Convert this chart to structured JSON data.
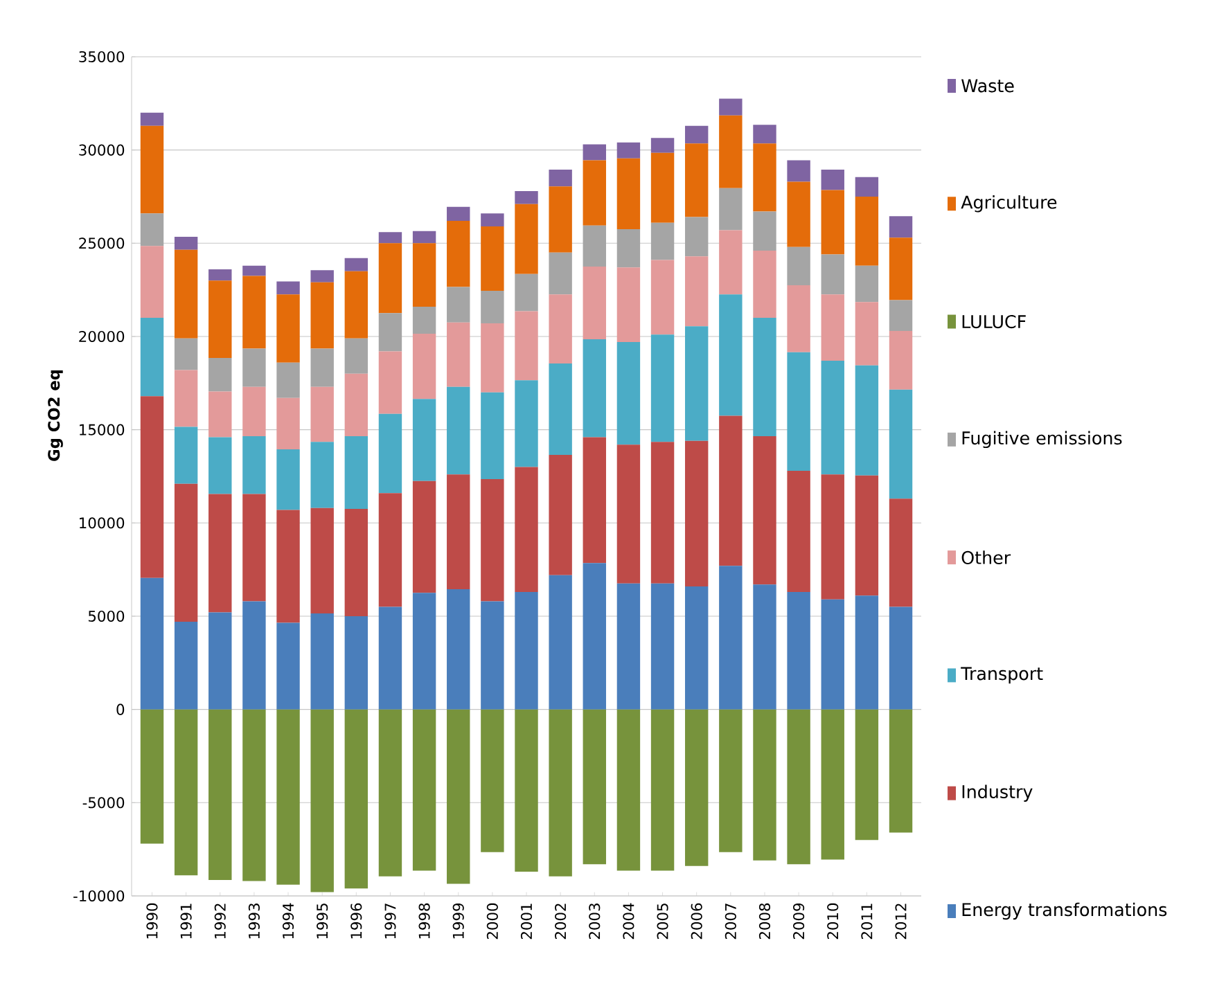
{
  "chart_data": {
    "type": "bar",
    "stacked": true,
    "ylabel": "Gg CO2 eq",
    "categories": [
      "1990",
      "1991",
      "1992",
      "1993",
      "1994",
      "1995",
      "1996",
      "1997",
      "1998",
      "1999",
      "2000",
      "2001",
      "2002",
      "2003",
      "2004",
      "2005",
      "2006",
      "2007",
      "2008",
      "2009",
      "2010",
      "2011",
      "2012"
    ],
    "series": [
      {
        "name": "Energy transformations",
        "color": "#4a7ebb",
        "values": [
          7050,
          4700,
          5200,
          5800,
          4650,
          5150,
          5000,
          5500,
          6250,
          6450,
          5800,
          6300,
          7200,
          7850,
          6750,
          6750,
          6600,
          7700,
          6700,
          6300,
          5900,
          6100,
          5500
        ]
      },
      {
        "name": "Industry",
        "color": "#be4b48",
        "values": [
          9750,
          7400,
          6350,
          5750,
          6050,
          5650,
          5750,
          6100,
          6000,
          6150,
          6550,
          6700,
          6450,
          6750,
          7450,
          7600,
          7800,
          8050,
          7950,
          6500,
          6700,
          6450,
          5800
        ]
      },
      {
        "name": "Transport",
        "color": "#4bacc6",
        "values": [
          4200,
          3050,
          3050,
          3100,
          3250,
          3550,
          3900,
          4250,
          4400,
          4700,
          4650,
          4650,
          4900,
          5250,
          5500,
          5750,
          6150,
          6500,
          6350,
          6350,
          6100,
          5900,
          5850
        ]
      },
      {
        "name": "Other",
        "color": "#e39a9a",
        "values": [
          3850,
          3050,
          2450,
          2650,
          2750,
          2950,
          3350,
          3350,
          3500,
          3450,
          3700,
          3700,
          3700,
          3900,
          4000,
          4000,
          3750,
          3450,
          3600,
          3600,
          3550,
          3400,
          3150
        ]
      },
      {
        "name": "Fugitive emissions",
        "color": "#a5a5a5",
        "values": [
          1750,
          1700,
          1800,
          2050,
          1900,
          2050,
          1900,
          2050,
          1450,
          1900,
          1750,
          2000,
          2250,
          2200,
          2050,
          2000,
          2100,
          2250,
          2100,
          2050,
          2150,
          1950,
          1650
        ]
      },
      {
        "name": "LULUCF",
        "color": "#77933c",
        "values": [
          -7200,
          -8900,
          -9150,
          -9200,
          -9400,
          -9800,
          -9600,
          -8950,
          -8650,
          -9350,
          -7650,
          -8700,
          -8950,
          -8300,
          -8650,
          -8650,
          -8400,
          -7650,
          -8100,
          -8300,
          -8050,
          -7000,
          -6600
        ]
      },
      {
        "name": "Agriculture",
        "color": "#e46c0a",
        "values": [
          4700,
          4750,
          4150,
          3900,
          3650,
          3550,
          3600,
          3750,
          3400,
          3550,
          3450,
          3750,
          3550,
          3500,
          3800,
          3750,
          3950,
          3900,
          3650,
          3500,
          3450,
          3700,
          3350
        ]
      },
      {
        "name": "Waste",
        "color": "#7f64a2",
        "values": [
          700,
          700,
          600,
          550,
          700,
          650,
          700,
          600,
          650,
          750,
          700,
          700,
          900,
          850,
          850,
          800,
          950,
          900,
          1000,
          1150,
          1100,
          1050,
          1150
        ]
      }
    ],
    "ylim": [
      -10000,
      35000
    ],
    "yticks": [
      -10000,
      -5000,
      0,
      5000,
      10000,
      15000,
      20000,
      25000,
      30000,
      35000
    ],
    "grid": "y",
    "legend": "right"
  }
}
